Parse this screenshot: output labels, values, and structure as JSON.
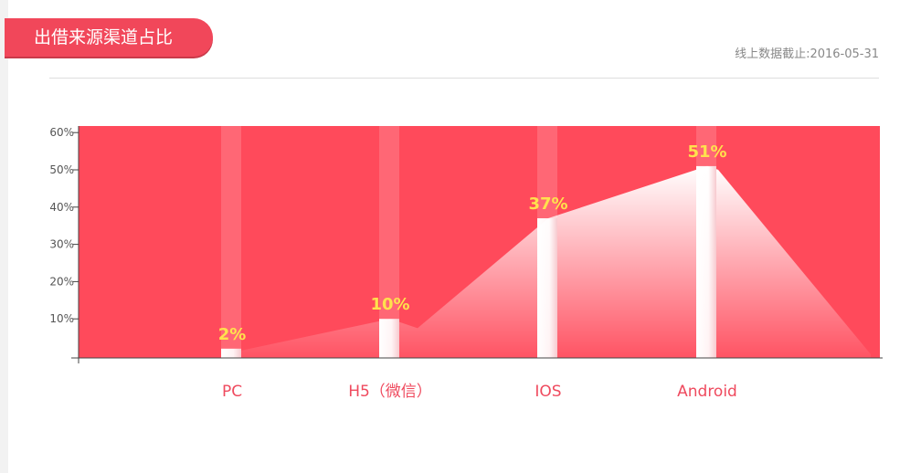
{
  "header": {
    "title": "出借来源渠道占比",
    "cutoff": "线上数据截止:2016-05-31"
  },
  "colors": {
    "accent": "#f1475a",
    "plot_bg": "#ff4a5b",
    "value_label": "#ffe14d",
    "category_label": "#ef4a5e",
    "tick_label": "#555555"
  },
  "chart_data": {
    "type": "bar",
    "categories": [
      "PC",
      "H5（微信）",
      "IOS",
      "Android"
    ],
    "values": [
      2,
      10,
      37,
      51
    ],
    "value_labels": [
      "2%",
      "10%",
      "37%",
      "51%"
    ],
    "y_ticks": [
      "10%",
      "20%",
      "30%",
      "40%",
      "50%",
      "60%"
    ],
    "ylim": [
      0,
      60
    ],
    "area_overlay": true,
    "grid": false,
    "legend": "none"
  }
}
